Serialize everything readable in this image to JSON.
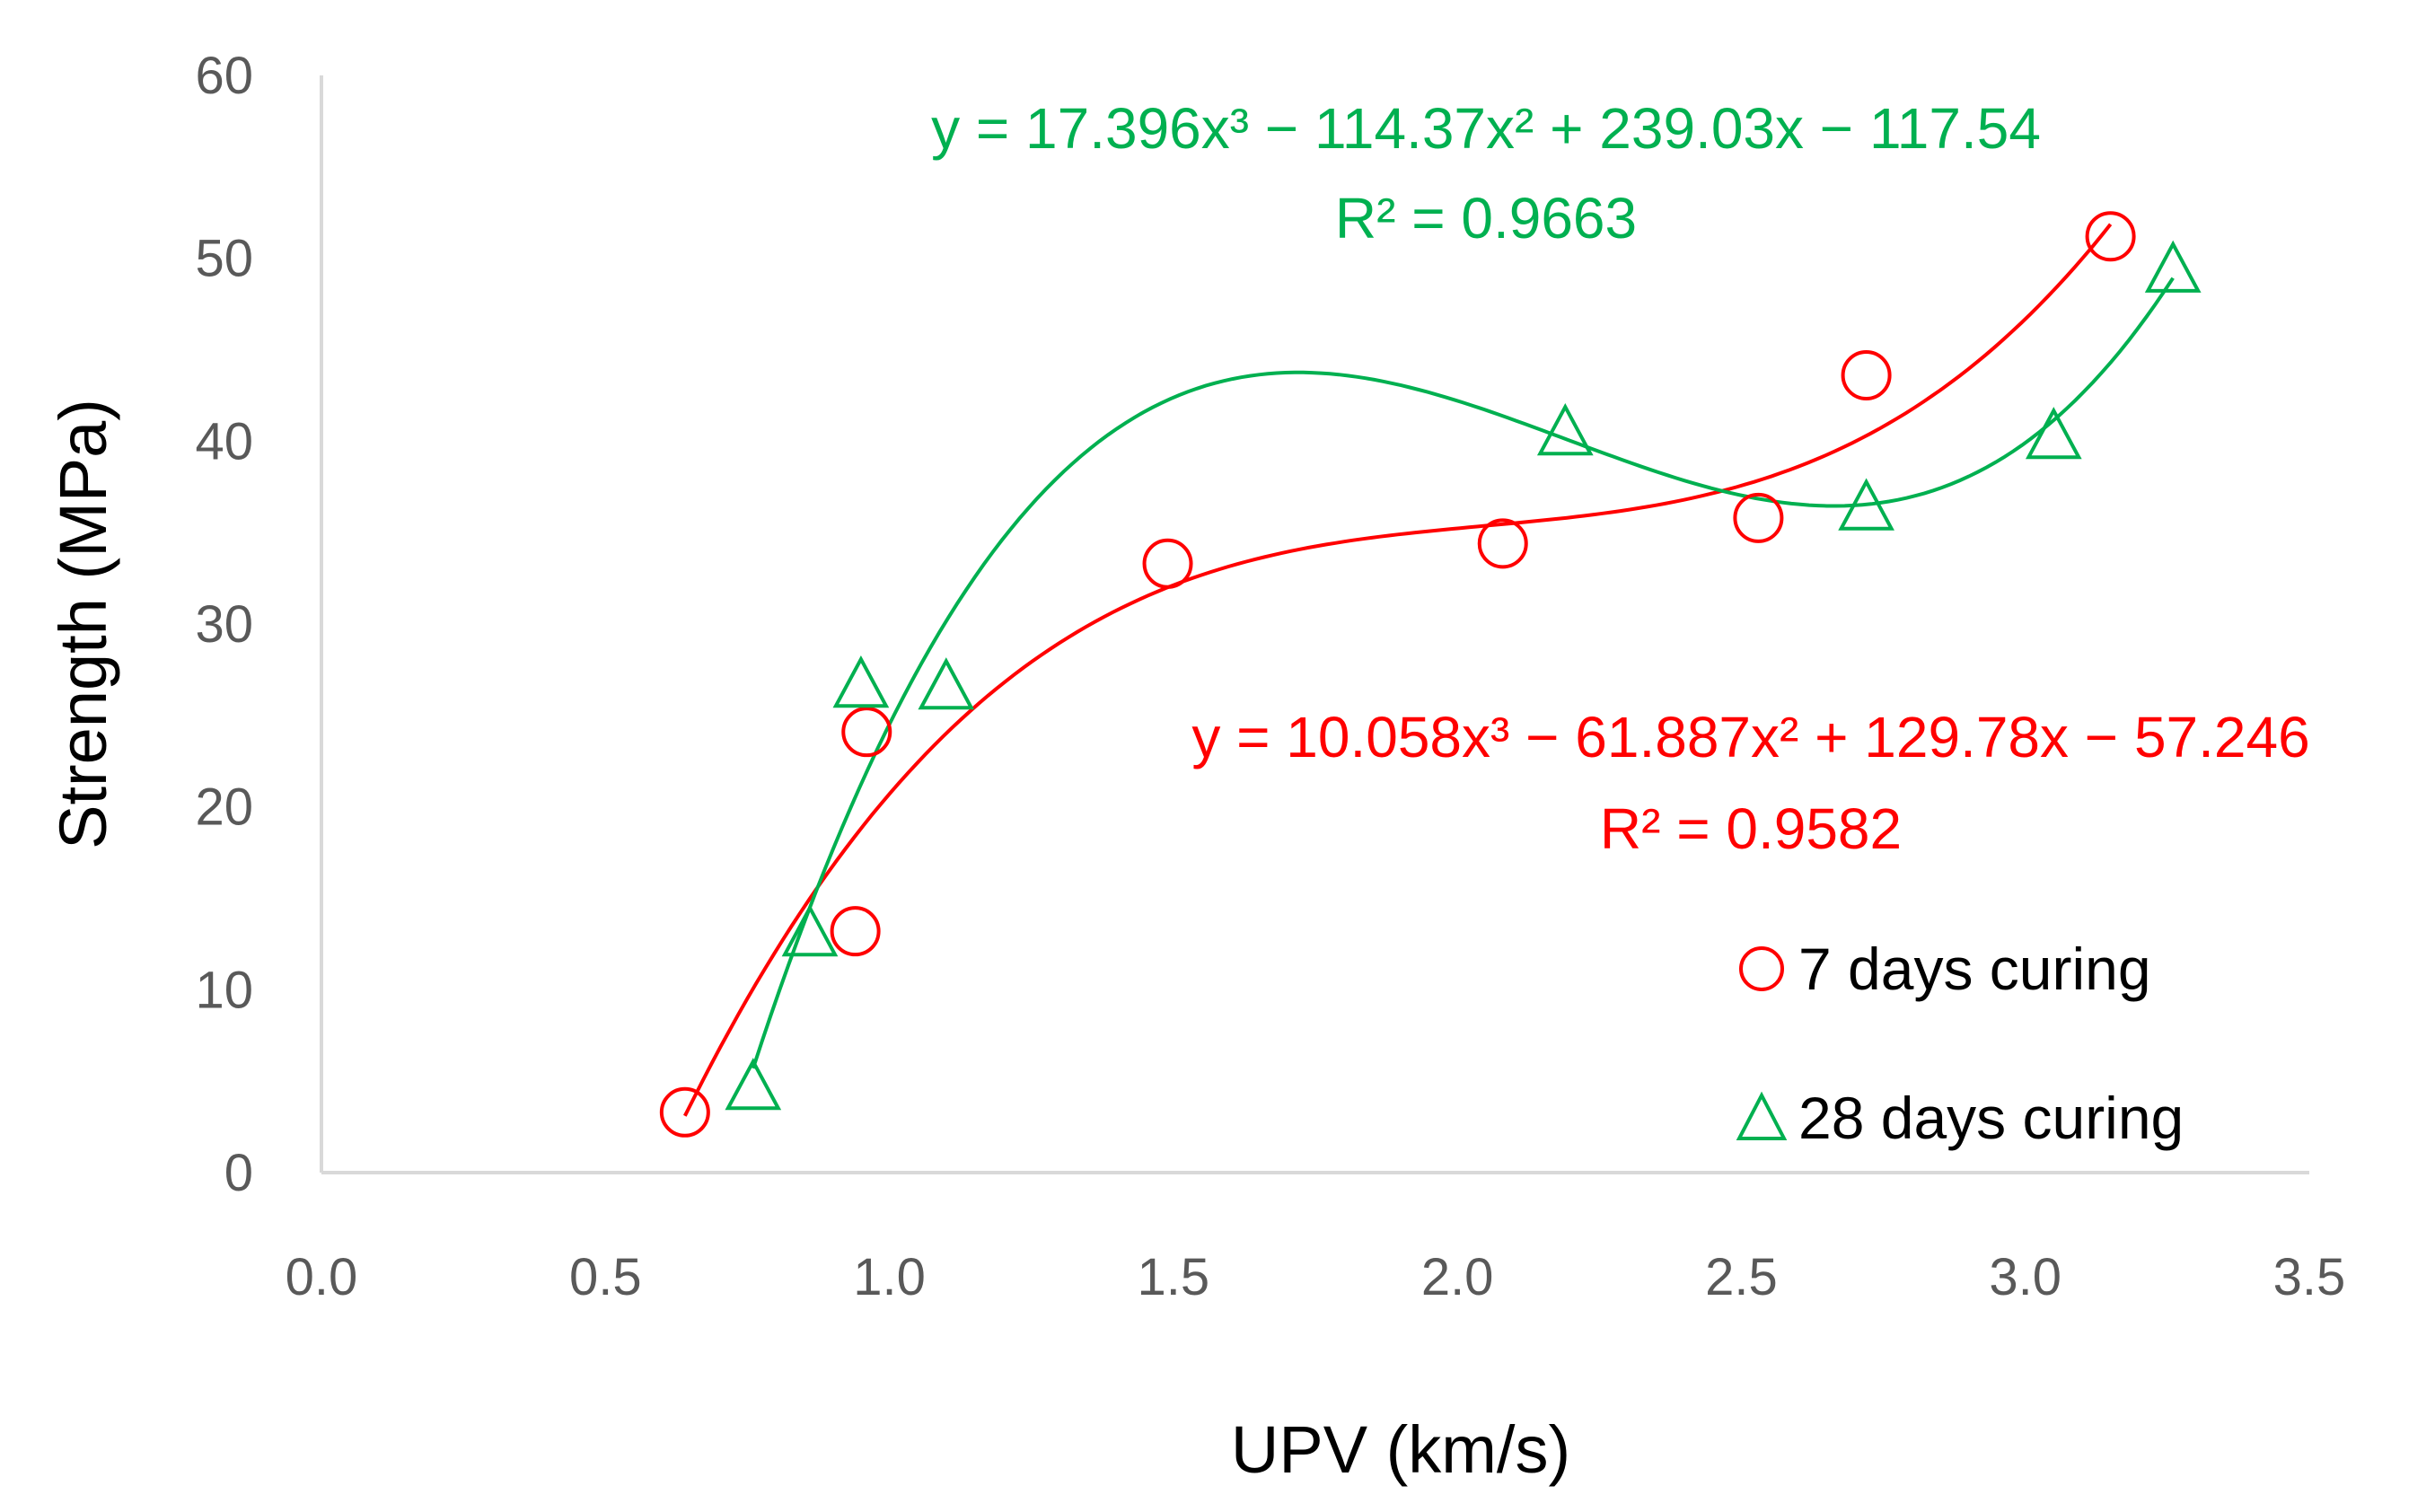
{
  "chart_data": {
    "type": "scatter",
    "xlabel": "UPV (km/s)",
    "ylabel": "Strength (MPa)",
    "xlim": [
      0,
      3.5
    ],
    "ylim": [
      0,
      60
    ],
    "xticks": [
      "0.0",
      "0.5",
      "1.0",
      "1.5",
      "2.0",
      "2.5",
      "3.0",
      "3.5"
    ],
    "yticks": [
      "0",
      "10",
      "20",
      "30",
      "40",
      "50",
      "60"
    ],
    "grid": false,
    "legend_position": "bottom-right",
    "series": [
      {
        "name": "7 days curing",
        "marker": "circle",
        "color": "#ff0000",
        "points": [
          {
            "x": 0.64,
            "y": 3.3
          },
          {
            "x": 0.94,
            "y": 13.2
          },
          {
            "x": 0.96,
            "y": 24.1
          },
          {
            "x": 1.49,
            "y": 33.3
          },
          {
            "x": 2.08,
            "y": 34.4
          },
          {
            "x": 2.53,
            "y": 35.8
          },
          {
            "x": 2.72,
            "y": 43.6
          },
          {
            "x": 3.15,
            "y": 51.2
          }
        ],
        "trendline": {
          "type": "poly3",
          "coefficients": [
            10.058,
            -61.887,
            129.78,
            -57.246
          ],
          "x_range": [
            0.64,
            3.15
          ],
          "equation": "y = 10.058x³ − 61.887x² + 129.78x − 57.246",
          "r2": "R² = 0.9582"
        }
      },
      {
        "name": "28 days curing",
        "marker": "triangle",
        "color": "#00b050",
        "points": [
          {
            "x": 0.76,
            "y": 4.6
          },
          {
            "x": 0.86,
            "y": 13.0
          },
          {
            "x": 0.95,
            "y": 26.6
          },
          {
            "x": 1.1,
            "y": 26.5
          },
          {
            "x": 2.19,
            "y": 40.4
          },
          {
            "x": 2.72,
            "y": 36.3
          },
          {
            "x": 3.05,
            "y": 40.2
          },
          {
            "x": 3.26,
            "y": 49.3
          }
        ],
        "trendline": {
          "type": "poly3",
          "coefficients": [
            17.396,
            -114.37,
            239.03,
            -117.54
          ],
          "x_range": [
            0.76,
            3.26
          ],
          "equation": "y = 17.396x³ − 114.37x² + 239.03x − 117.54",
          "r2": "R² = 0.9663"
        }
      }
    ]
  }
}
